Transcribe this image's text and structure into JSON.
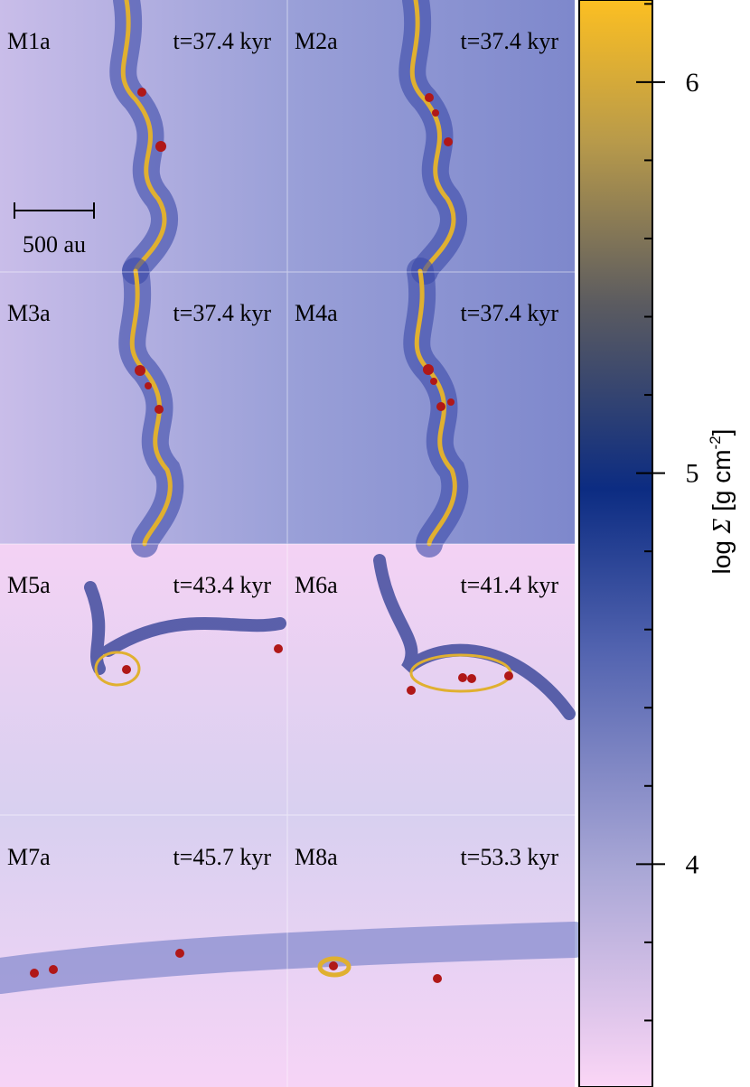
{
  "panels": [
    {
      "label": "M1a",
      "time": "t=37.4 kyr"
    },
    {
      "label": "M2a",
      "time": "t=37.4 kyr"
    },
    {
      "label": "M3a",
      "time": "t=37.4 kyr"
    },
    {
      "label": "M4a",
      "time": "t=37.4 kyr"
    },
    {
      "label": "M5a",
      "time": "t=43.4 kyr"
    },
    {
      "label": "M6a",
      "time": "t=41.4 kyr"
    },
    {
      "label": "M7a",
      "time": "t=45.7 kyr"
    },
    {
      "label": "M8a",
      "time": "t=53.3 kyr"
    }
  ],
  "scale_bar": "500 au",
  "colorbar": {
    "label": "log ",
    "symbol": "Σ",
    "unit": " [g cm",
    "exponent": "-2",
    "unit_end": "]",
    "lim": [
      3.43,
      6.21
    ],
    "ticks": [
      4,
      5,
      6
    ],
    "minor_ticks": [
      3.6,
      3.8,
      4.2,
      4.4,
      4.6,
      4.8,
      5.2,
      5.4,
      5.6,
      5.8,
      6.2
    ]
  }
}
